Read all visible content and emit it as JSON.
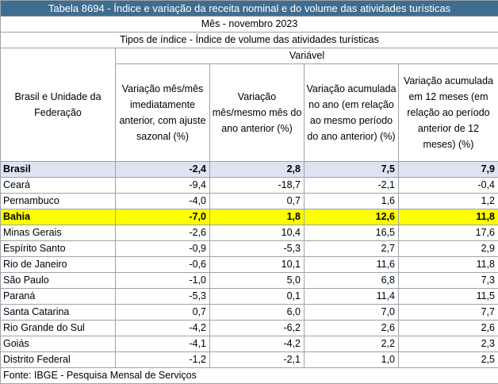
{
  "title": "Tabela 8694 - Índice e variação da receita nominal e do volume das atividades turísticas",
  "month_label": "Mês - novembro 2023",
  "index_type_label": "Tipos de índice - Índice de volume das atividades turísticas",
  "variable_label": "Variável",
  "row_header": "Brasil e Unidade da Federação",
  "columns": [
    "Variação mês/mês imediatamente anterior, com ajuste sazonal (%)",
    "Variação mês/mesmo mês do ano anterior (%)",
    "Variação acumulada no ano (em relação ao mesmo período do ano anterior) (%)",
    "Variação acumulada em 12 meses (em relação ao período anterior de 12 meses) (%)"
  ],
  "rows": [
    {
      "name": "Brasil",
      "values": [
        "-2,4",
        "2,8",
        "7,5",
        "7,9"
      ]
    },
    {
      "name": "Ceará",
      "values": [
        "-9,4",
        "-18,7",
        "-2,1",
        "-0,4"
      ]
    },
    {
      "name": "Pernambuco",
      "values": [
        "-4,0",
        "0,7",
        "1,6",
        "1,2"
      ]
    },
    {
      "name": "Bahia",
      "values": [
        "-7,0",
        "1,8",
        "12,6",
        "11,8"
      ]
    },
    {
      "name": "Minas Gerais",
      "values": [
        "-2,6",
        "10,4",
        "16,5",
        "17,6"
      ]
    },
    {
      "name": "Espírito Santo",
      "values": [
        "-0,9",
        "-5,3",
        "2,7",
        "2,9"
      ]
    },
    {
      "name": "Rio de Janeiro",
      "values": [
        "-0,6",
        "10,1",
        "11,6",
        "11,8"
      ]
    },
    {
      "name": "São Paulo",
      "values": [
        "-1,0",
        "5,0",
        "6,8",
        "7,3"
      ]
    },
    {
      "name": "Paraná",
      "values": [
        "-5,3",
        "0,1",
        "11,4",
        "11,5"
      ]
    },
    {
      "name": "Santa Catarina",
      "values": [
        "0,7",
        "6,0",
        "7,0",
        "7,7"
      ]
    },
    {
      "name": "Rio Grande do Sul",
      "values": [
        "-4,2",
        "-6,2",
        "2,6",
        "2,6"
      ]
    },
    {
      "name": "Goiás",
      "values": [
        "-4,1",
        "-4,2",
        "2,2",
        "2,3"
      ]
    },
    {
      "name": "Distrito Federal",
      "values": [
        "-1,2",
        "-2,1",
        "1,0",
        "2,5"
      ]
    }
  ],
  "source": "Fonte: IBGE - Pesquisa Mensal de Serviços",
  "colors": {
    "title_bg": "#3f6d8f",
    "brasil_bg": "#dbe5f1",
    "bahia_bg": "#ffff00"
  }
}
